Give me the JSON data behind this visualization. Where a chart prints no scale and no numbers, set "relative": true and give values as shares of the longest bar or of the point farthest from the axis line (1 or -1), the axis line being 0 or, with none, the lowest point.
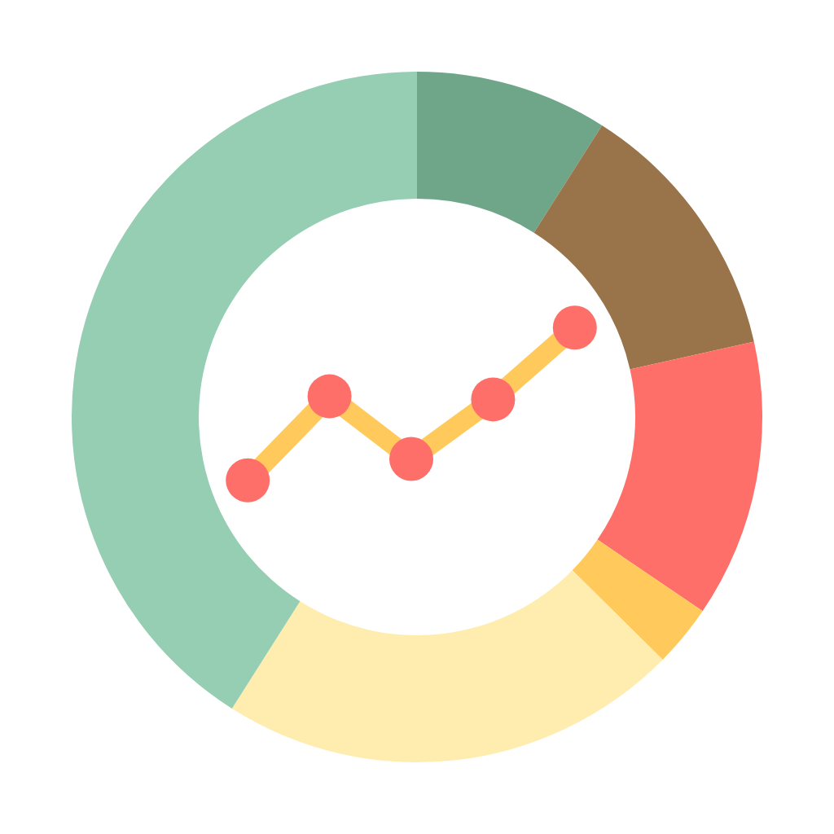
{
  "chart_data": [
    {
      "type": "donut",
      "categories": [
        null,
        null,
        null,
        null,
        null,
        null
      ],
      "values": [
        9,
        12.5,
        13,
        2.9,
        21.6,
        41
      ],
      "colors": [
        "#6fa68a",
        "#997349",
        "#ff6f69",
        "#ffc95b",
        "#ffedaf",
        "#96ceb4"
      ]
    },
    {
      "type": "line",
      "categories": [
        null,
        null,
        null,
        null,
        null
      ],
      "relative": true,
      "marker": "circle",
      "series": [
        {
          "color": "#ffc95b",
          "colors": [
            "#ff6f69",
            "#ff6f69",
            "#ff6f69",
            "#ff6f69",
            "#ff6f69"
          ],
          "values": [
            0,
            0.55,
            0.14,
            0.53,
            1
          ]
        }
      ]
    }
  ]
}
